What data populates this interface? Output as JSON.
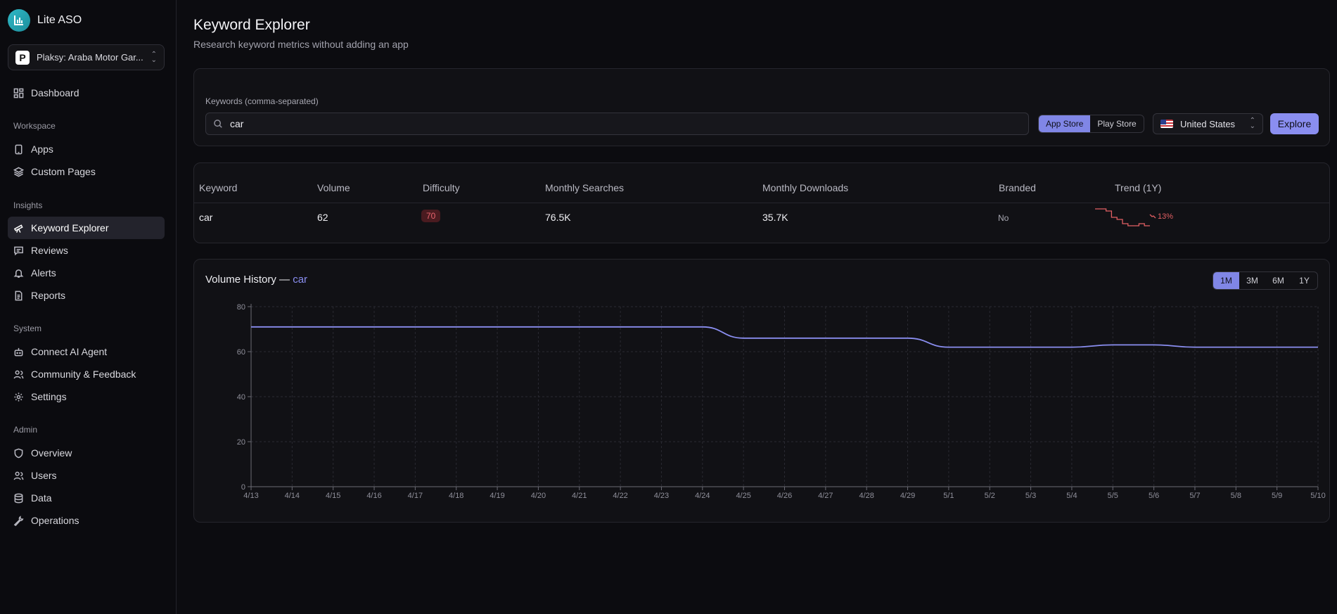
{
  "app": {
    "name": "Lite ASO",
    "selected_app": "Plaksy: Araba Motor Gar..."
  },
  "sidebar": {
    "dashboard": "Dashboard",
    "sections": {
      "workspace": "Workspace",
      "insights": "Insights",
      "system": "System",
      "admin": "Admin"
    },
    "workspace_items": [
      {
        "label": "Apps",
        "icon": "phone-icon"
      },
      {
        "label": "Custom Pages",
        "icon": "layers-icon"
      }
    ],
    "insights_items": [
      {
        "label": "Keyword Explorer",
        "icon": "telescope-icon",
        "active": true
      },
      {
        "label": "Reviews",
        "icon": "message-icon"
      },
      {
        "label": "Alerts",
        "icon": "bell-icon"
      },
      {
        "label": "Reports",
        "icon": "file-icon"
      }
    ],
    "system_items": [
      {
        "label": "Connect AI Agent",
        "icon": "bot-icon"
      },
      {
        "label": "Community & Feedback",
        "icon": "users-icon"
      },
      {
        "label": "Settings",
        "icon": "gear-icon"
      }
    ],
    "admin_items": [
      {
        "label": "Overview",
        "icon": "shield-icon"
      },
      {
        "label": "Users",
        "icon": "users-icon"
      },
      {
        "label": "Data",
        "icon": "database-icon"
      },
      {
        "label": "Operations",
        "icon": "wrench-icon"
      }
    ]
  },
  "page": {
    "title": "Keyword Explorer",
    "subtitle": "Research keyword metrics without adding an app"
  },
  "search": {
    "label": "Keywords (comma-separated)",
    "value": "car",
    "store_options": [
      "App Store",
      "Play Store"
    ],
    "selected_store": "App Store",
    "country": "United States",
    "explore_label": "Explore"
  },
  "table": {
    "headers": [
      "Keyword",
      "Volume",
      "Difficulty",
      "Monthly Searches",
      "Monthly Downloads",
      "Branded",
      "Trend (1Y)"
    ],
    "rows": [
      {
        "keyword": "car",
        "volume": "62",
        "difficulty": "70",
        "monthly_searches": "76.5K",
        "monthly_downloads": "35.7K",
        "branded": "No",
        "trend_pct": "13%",
        "trend_direction": "down"
      }
    ]
  },
  "history": {
    "title_prefix": "Volume History —",
    "keyword": "car",
    "ranges": [
      "1M",
      "3M",
      "6M",
      "1Y"
    ],
    "selected_range": "1M"
  },
  "colors": {
    "accent": "#8a8ef0",
    "negative": "#e25f63",
    "background": "#0c0c10"
  },
  "chart_data": {
    "type": "line",
    "x": [
      "4/13",
      "4/14",
      "4/15",
      "4/16",
      "4/17",
      "4/18",
      "4/19",
      "4/20",
      "4/21",
      "4/22",
      "4/23",
      "4/24",
      "4/25",
      "4/26",
      "4/27",
      "4/28",
      "4/29",
      "5/1",
      "5/2",
      "5/3",
      "5/4",
      "5/5",
      "5/6",
      "5/7",
      "5/8",
      "5/9",
      "5/10"
    ],
    "series": [
      {
        "values": [
          71,
          71,
          71,
          71,
          71,
          71,
          71,
          71,
          71,
          71,
          71,
          71,
          66,
          66,
          66,
          66,
          66,
          62,
          62,
          62,
          62,
          63,
          63,
          62,
          62,
          62,
          62
        ]
      }
    ],
    "ylim": [
      0,
      80
    ],
    "yticks": [
      0,
      20,
      40,
      60,
      80
    ],
    "grid": true,
    "sparkline": [
      62,
      62,
      61,
      58,
      57,
      55,
      54,
      54,
      55,
      54,
      54
    ]
  }
}
